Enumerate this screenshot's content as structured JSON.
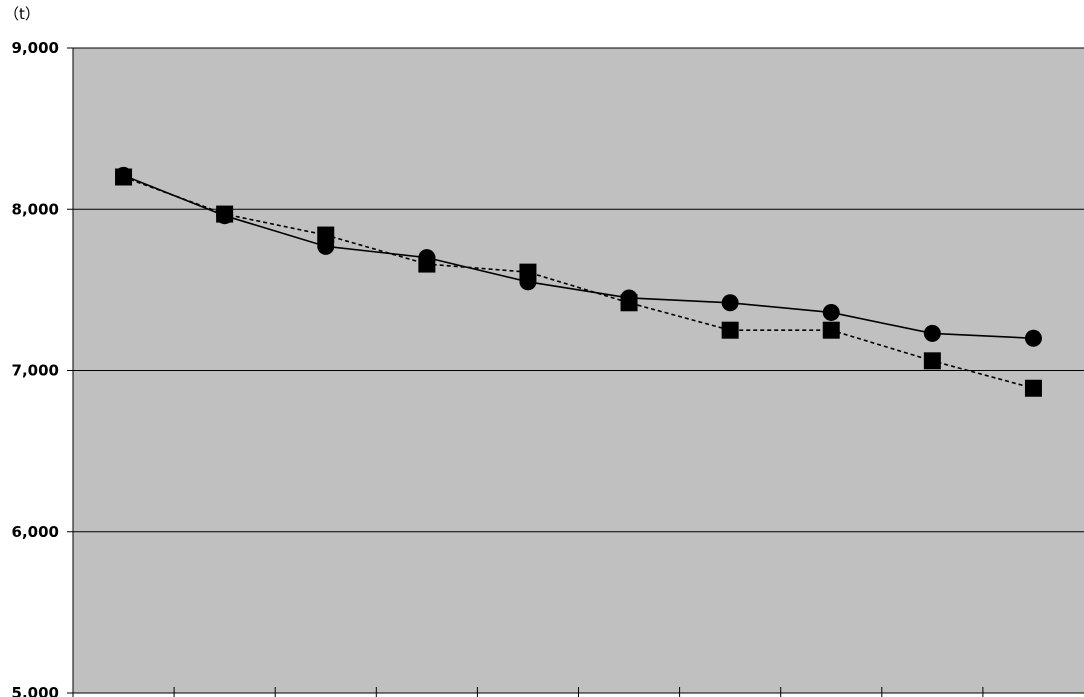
{
  "chart_data": {
    "type": "line",
    "title": "",
    "y_unit": "（t）",
    "xlabel": "",
    "ylabel": "",
    "ylim": [
      5000,
      9000
    ],
    "yticks": [
      5000,
      6000,
      7000,
      8000,
      9000
    ],
    "ytick_labels": [
      "5,000",
      "6,000",
      "7,000",
      "8,000",
      "9,000"
    ],
    "x": [
      1,
      2,
      3,
      4,
      5,
      6,
      7,
      8,
      9,
      10
    ],
    "grid": true,
    "plot_background": "#c0c0c0",
    "series": [
      {
        "marker": "circle",
        "line_style": "solid",
        "color": "#000000",
        "values": [
          8210,
          7960,
          7770,
          7700,
          7550,
          7450,
          7420,
          7360,
          7230,
          7200
        ]
      },
      {
        "marker": "square",
        "line_style": "dashed",
        "color": "#000000",
        "values": [
          8200,
          7970,
          7840,
          7660,
          7610,
          7420,
          7250,
          7250,
          7060,
          6890
        ]
      }
    ]
  }
}
